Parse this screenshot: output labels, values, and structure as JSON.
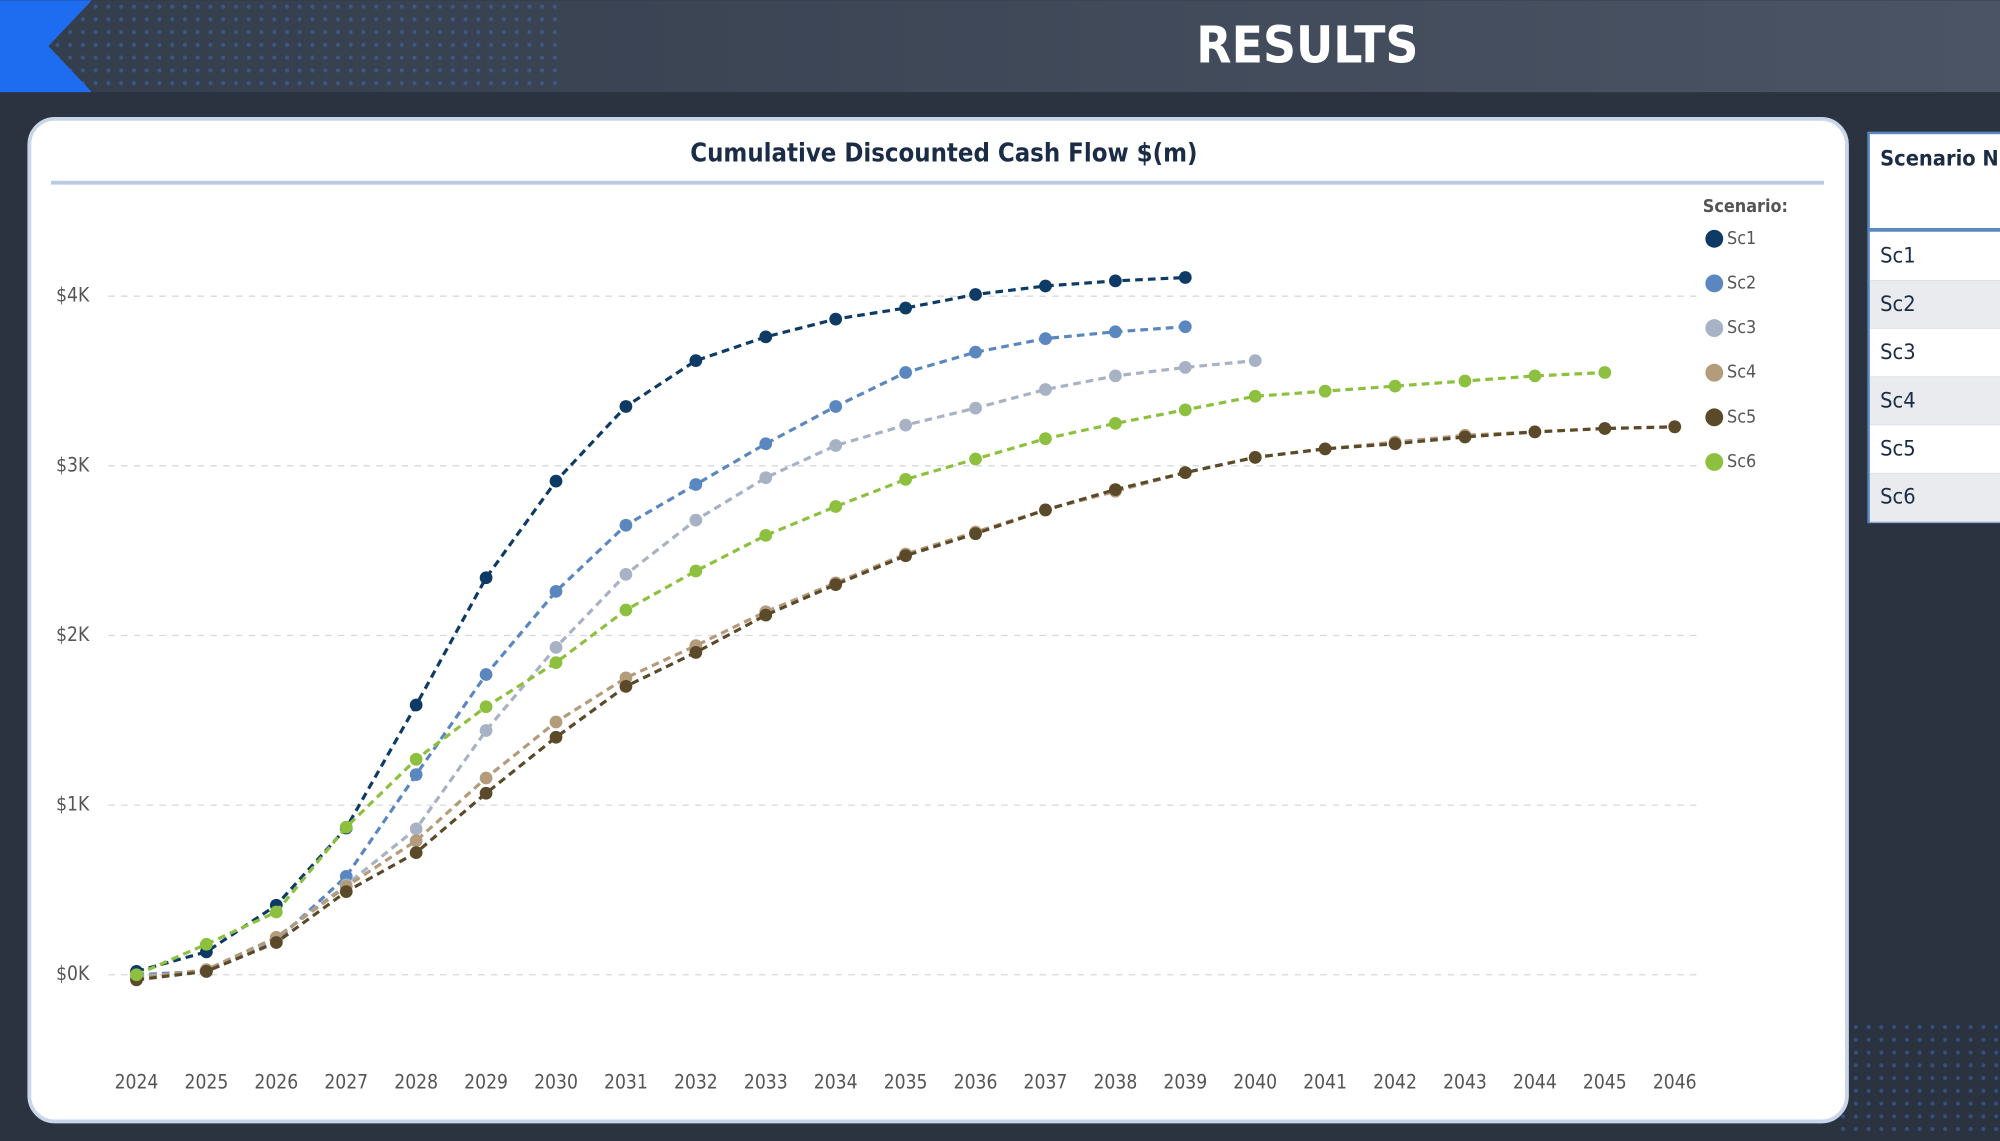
{
  "header": {
    "title": "RESULTS"
  },
  "chart_data": {
    "type": "line",
    "title": "Cumulative Discounted Cash Flow $(m)",
    "legend_title": "Scenario:",
    "legend": "right",
    "grid": true,
    "line_style": "dashed",
    "categories": [
      "2024",
      "2025",
      "2026",
      "2027",
      "2028",
      "2029",
      "2030",
      "2031",
      "2032",
      "2033",
      "2034",
      "2035",
      "2036",
      "2037",
      "2038",
      "2039",
      "2040",
      "2041",
      "2042",
      "2043",
      "2044",
      "2045",
      "2046"
    ],
    "ylim": [
      -0.3,
      4.5
    ],
    "yticks": [
      {
        "value": 0,
        "label": "$0K"
      },
      {
        "value": 1,
        "label": "$1K"
      },
      {
        "value": 2,
        "label": "$2K"
      },
      {
        "value": 3,
        "label": "$3K"
      },
      {
        "value": 4,
        "label": "$4K"
      }
    ],
    "series": [
      {
        "name": "Sc1",
        "color": "#0e3a66",
        "values": [
          0.02,
          0.135,
          0.41,
          0.865,
          1.59,
          2.34,
          2.91,
          3.35,
          3.62,
          3.76,
          3.865,
          3.93,
          4.01,
          4.06,
          4.09,
          4.11,
          null,
          null,
          null,
          null,
          null,
          null,
          null
        ]
      },
      {
        "name": "Sc2",
        "color": "#5b87c0",
        "values": [
          0.0,
          0.02,
          0.2,
          0.58,
          1.18,
          1.77,
          2.26,
          2.65,
          2.89,
          3.13,
          3.35,
          3.55,
          3.67,
          3.75,
          3.79,
          3.82,
          null,
          null,
          null,
          null,
          null,
          null,
          null
        ]
      },
      {
        "name": "Sc3",
        "color": "#a7b2c4",
        "values": [
          -0.01,
          0.02,
          0.22,
          0.53,
          0.86,
          1.44,
          1.93,
          2.36,
          2.68,
          2.93,
          3.12,
          3.24,
          3.34,
          3.45,
          3.53,
          3.58,
          3.62,
          null,
          null,
          null,
          null,
          null,
          null
        ]
      },
      {
        "name": "Sc4",
        "color": "#b39b7c",
        "values": [
          -0.02,
          0.03,
          0.22,
          0.52,
          0.79,
          1.16,
          1.49,
          1.75,
          1.94,
          2.14,
          2.31,
          2.48,
          2.61,
          2.74,
          2.85,
          2.96,
          3.05,
          3.1,
          3.14,
          3.18,
          3.2,
          3.22,
          3.23
        ]
      },
      {
        "name": "Sc5",
        "color": "#5a4a2a",
        "values": [
          -0.03,
          0.02,
          0.19,
          0.49,
          0.72,
          1.07,
          1.4,
          1.7,
          1.9,
          2.12,
          2.3,
          2.47,
          2.6,
          2.74,
          2.86,
          2.96,
          3.05,
          3.1,
          3.13,
          3.17,
          3.2,
          3.22,
          3.23
        ]
      },
      {
        "name": "Sc6",
        "color": "#8dc03f",
        "values": [
          0.0,
          0.18,
          0.37,
          0.87,
          1.27,
          1.58,
          1.84,
          2.15,
          2.38,
          2.59,
          2.76,
          2.92,
          3.04,
          3.16,
          3.25,
          3.33,
          3.41,
          3.44,
          3.47,
          3.5,
          3.53,
          3.55,
          null
        ]
      }
    ]
  },
  "table": {
    "header": "Scenario N",
    "rows": [
      "Sc1",
      "Sc2",
      "Sc3",
      "Sc4",
      "Sc5",
      "Sc6"
    ]
  }
}
